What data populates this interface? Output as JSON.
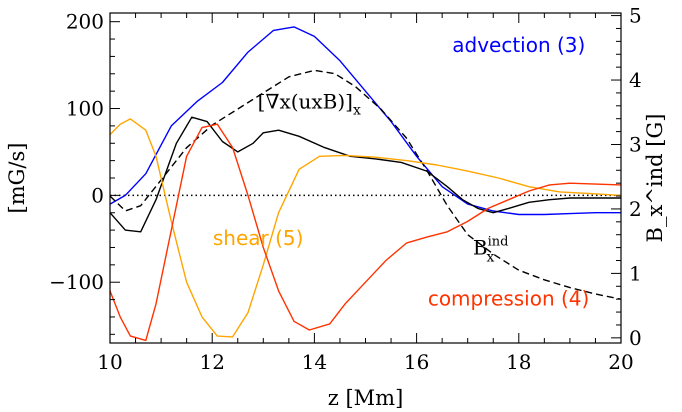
{
  "chart_data": {
    "type": "line",
    "xlabel": "z [Mm]",
    "ylabel": "[mG/s]",
    "ylabel_right": "B_x^ind [G]",
    "xlim": [
      10,
      20
    ],
    "ylim": [
      -170,
      210
    ],
    "ylim_right": [
      -0.08,
      5.04
    ],
    "x_ticks": [
      10,
      12,
      14,
      16,
      18,
      20
    ],
    "y_ticks": [
      -100,
      0,
      100,
      200
    ],
    "y_ticks_right": [
      0,
      1,
      2,
      3,
      4,
      5
    ],
    "zero_line": true,
    "series": [
      {
        "name": "advection (3)",
        "axis": "left",
        "color": "#0000ff",
        "style": "solid",
        "points": [
          [
            10,
            -10
          ],
          [
            10.3,
            0
          ],
          [
            10.7,
            25
          ],
          [
            11.2,
            80
          ],
          [
            11.7,
            108
          ],
          [
            12.2,
            130
          ],
          [
            12.7,
            165
          ],
          [
            13.2,
            190
          ],
          [
            13.6,
            194
          ],
          [
            14.0,
            183
          ],
          [
            14.5,
            155
          ],
          [
            15.0,
            120
          ],
          [
            15.5,
            85
          ],
          [
            16.0,
            45
          ],
          [
            16.5,
            10
          ],
          [
            17.0,
            -10
          ],
          [
            17.5,
            -18
          ],
          [
            18.0,
            -22
          ],
          [
            18.5,
            -22
          ],
          [
            19.0,
            -21
          ],
          [
            19.5,
            -20
          ],
          [
            20.0,
            -20
          ]
        ]
      },
      {
        "name": "[∇x(uxB)]x",
        "axis": "left",
        "color": "#000000",
        "style": "solid",
        "points": [
          [
            10,
            -20
          ],
          [
            10.3,
            -40
          ],
          [
            10.6,
            -42
          ],
          [
            10.9,
            -5
          ],
          [
            11.3,
            60
          ],
          [
            11.6,
            90
          ],
          [
            11.9,
            85
          ],
          [
            12.2,
            62
          ],
          [
            12.5,
            50
          ],
          [
            12.8,
            60
          ],
          [
            13.0,
            72
          ],
          [
            13.3,
            75
          ],
          [
            13.7,
            68
          ],
          [
            14.2,
            55
          ],
          [
            14.7,
            45
          ],
          [
            15.2,
            42
          ],
          [
            15.7,
            38
          ],
          [
            16.2,
            28
          ],
          [
            16.6,
            10
          ],
          [
            16.9,
            -5
          ],
          [
            17.2,
            -15
          ],
          [
            17.5,
            -20
          ],
          [
            17.8,
            -15
          ],
          [
            18.2,
            -8
          ],
          [
            18.6,
            -5
          ],
          [
            19.0,
            -3
          ],
          [
            19.5,
            -3
          ],
          [
            20.0,
            -3
          ]
        ]
      },
      {
        "name": "B_x^ind",
        "axis": "right",
        "color": "#000000",
        "style": "dashed",
        "points": [
          [
            10,
            2.2
          ],
          [
            10.3,
            1.97
          ],
          [
            10.6,
            2.05
          ],
          [
            11.0,
            2.45
          ],
          [
            11.5,
            2.95
          ],
          [
            12.0,
            3.3
          ],
          [
            12.5,
            3.55
          ],
          [
            13.0,
            3.8
          ],
          [
            13.5,
            4.05
          ],
          [
            14.0,
            4.15
          ],
          [
            14.4,
            4.1
          ],
          [
            14.8,
            3.9
          ],
          [
            15.3,
            3.55
          ],
          [
            15.8,
            3.1
          ],
          [
            16.2,
            2.6
          ],
          [
            16.6,
            2.05
          ],
          [
            17.0,
            1.6
          ],
          [
            17.5,
            1.3
          ],
          [
            18.0,
            1.05
          ],
          [
            18.5,
            0.9
          ],
          [
            19.0,
            0.78
          ],
          [
            19.5,
            0.68
          ],
          [
            20.0,
            0.6
          ]
        ]
      },
      {
        "name": "shear (5)",
        "axis": "left",
        "color": "#ffa500",
        "style": "solid",
        "points": [
          [
            10,
            70
          ],
          [
            10.2,
            82
          ],
          [
            10.4,
            88
          ],
          [
            10.7,
            75
          ],
          [
            10.9,
            45
          ],
          [
            11.2,
            -30
          ],
          [
            11.5,
            -100
          ],
          [
            11.8,
            -140
          ],
          [
            12.1,
            -162
          ],
          [
            12.4,
            -163
          ],
          [
            12.7,
            -135
          ],
          [
            13.0,
            -80
          ],
          [
            13.3,
            -20
          ],
          [
            13.7,
            30
          ],
          [
            14.1,
            45
          ],
          [
            14.6,
            46
          ],
          [
            15.2,
            44
          ],
          [
            15.8,
            40
          ],
          [
            16.4,
            35
          ],
          [
            17.0,
            28
          ],
          [
            17.6,
            20
          ],
          [
            18.2,
            10
          ],
          [
            18.8,
            4
          ],
          [
            19.4,
            2
          ],
          [
            20.0,
            0
          ]
        ]
      },
      {
        "name": "compression (4)",
        "axis": "left",
        "color": "#ff3300",
        "style": "solid",
        "points": [
          [
            10,
            -110
          ],
          [
            10.2,
            -140
          ],
          [
            10.4,
            -162
          ],
          [
            10.7,
            -167
          ],
          [
            10.9,
            -125
          ],
          [
            11.2,
            -40
          ],
          [
            11.5,
            45
          ],
          [
            11.8,
            78
          ],
          [
            12.1,
            82
          ],
          [
            12.4,
            55
          ],
          [
            12.7,
            0
          ],
          [
            13.0,
            -60
          ],
          [
            13.3,
            -110
          ],
          [
            13.6,
            -145
          ],
          [
            13.9,
            -155
          ],
          [
            14.3,
            -148
          ],
          [
            14.6,
            -125
          ],
          [
            15.0,
            -100
          ],
          [
            15.4,
            -75
          ],
          [
            15.8,
            -55
          ],
          [
            16.2,
            -48
          ],
          [
            16.6,
            -42
          ],
          [
            17.0,
            -30
          ],
          [
            17.4,
            -15
          ],
          [
            17.8,
            -5
          ],
          [
            18.2,
            5
          ],
          [
            18.6,
            12
          ],
          [
            19.0,
            14
          ],
          [
            19.5,
            13
          ],
          [
            20.0,
            12
          ]
        ]
      }
    ],
    "annotations": [
      {
        "text": "advection (3)",
        "color": "#0000ff",
        "x": 18.0,
        "y": 165
      },
      {
        "text": "[∇x(uxB)]",
        "subscript": "x",
        "color": "#000000",
        "x": 13.9,
        "y": 100
      },
      {
        "text": "shear (5)",
        "color": "#ffa500",
        "x": 12.9,
        "y": -57
      },
      {
        "text": "compression (4)",
        "color": "#ff3300",
        "x": 17.8,
        "y": -127
      },
      {
        "text": "B",
        "superscript": "ind",
        "subscript": "x",
        "color": "#000000",
        "x": 17.45,
        "y": -68
      }
    ]
  }
}
